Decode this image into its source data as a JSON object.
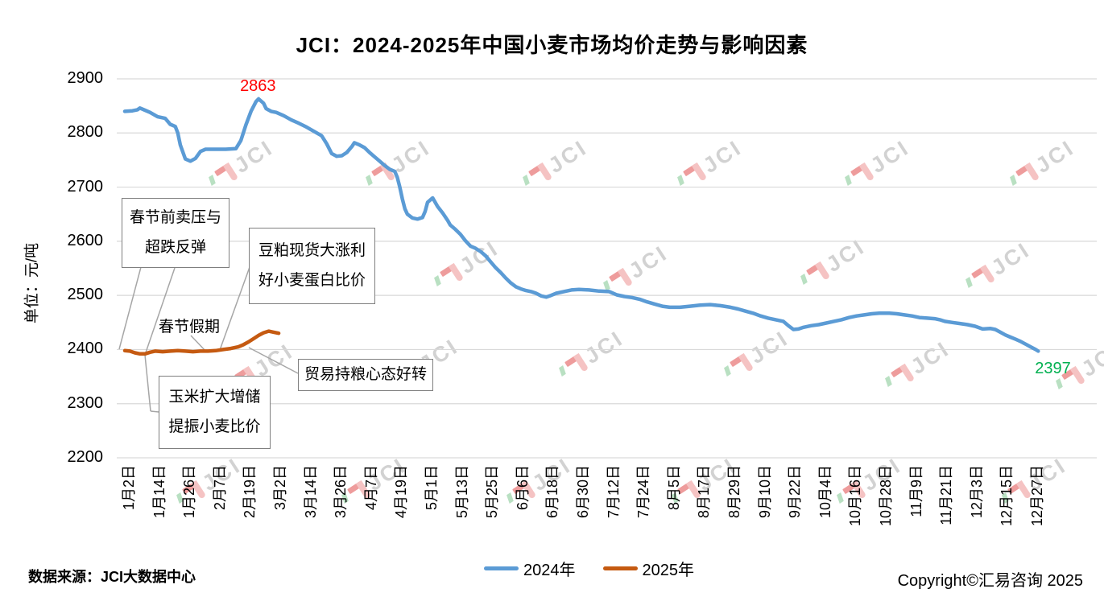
{
  "title": "JCI：2024-2025年中国小麦市场均价走势与影响因素",
  "y_axis": {
    "unit_label": "单位：元/吨",
    "ticks": [
      2900,
      2800,
      2700,
      2600,
      2500,
      2400,
      2300,
      2200
    ]
  },
  "x_axis": {
    "ticks": [
      "1月2日",
      "1月14日",
      "1月26日",
      "2月7日",
      "2月19日",
      "3月2日",
      "3月14日",
      "3月26日",
      "4月7日",
      "4月19日",
      "5月1日",
      "5月13日",
      "5月25日",
      "6月6日",
      "6月18日",
      "6月30日",
      "7月12日",
      "7月24日",
      "8月5日",
      "8月17日",
      "8月29日",
      "9月10日",
      "9月22日",
      "10月4日",
      "10月16日",
      "10月28日",
      "11月9日",
      "11月21日",
      "12月3日",
      "12月15日",
      "12月27日"
    ],
    "tick_interval_days": 12
  },
  "chart_data": {
    "type": "line",
    "title": "JCI：2024-2025年中国小麦市场均价走势与影响因素",
    "ylabel": "单位：元/吨",
    "ylim": [
      2200,
      2900
    ],
    "grid": "horizontal",
    "legend_position": "bottom",
    "x_unit": "days offset from 1月2日",
    "series": [
      {
        "name": "2024年",
        "color": "#5B9BD5",
        "points": [
          [
            0,
            2840
          ],
          [
            3,
            2841
          ],
          [
            5,
            2843
          ],
          [
            6,
            2846
          ],
          [
            8,
            2842
          ],
          [
            10,
            2838
          ],
          [
            13,
            2830
          ],
          [
            16,
            2827
          ],
          [
            18,
            2816
          ],
          [
            20,
            2812
          ],
          [
            21,
            2800
          ],
          [
            22,
            2778
          ],
          [
            24,
            2752
          ],
          [
            26,
            2748
          ],
          [
            28,
            2753
          ],
          [
            30,
            2766
          ],
          [
            32,
            2770
          ],
          [
            36,
            2770
          ],
          [
            40,
            2770
          ],
          [
            44,
            2771
          ],
          [
            46,
            2786
          ],
          [
            48,
            2815
          ],
          [
            50,
            2840
          ],
          [
            52,
            2858
          ],
          [
            53,
            2863
          ],
          [
            55,
            2855
          ],
          [
            56,
            2845
          ],
          [
            58,
            2840
          ],
          [
            60,
            2838
          ],
          [
            63,
            2832
          ],
          [
            66,
            2824
          ],
          [
            69,
            2818
          ],
          [
            72,
            2811
          ],
          [
            75,
            2803
          ],
          [
            78,
            2795
          ],
          [
            80,
            2780
          ],
          [
            82,
            2762
          ],
          [
            84,
            2757
          ],
          [
            86,
            2758
          ],
          [
            88,
            2764
          ],
          [
            90,
            2775
          ],
          [
            91,
            2782
          ],
          [
            93,
            2778
          ],
          [
            95,
            2773
          ],
          [
            97,
            2764
          ],
          [
            99,
            2756
          ],
          [
            101,
            2748
          ],
          [
            103,
            2740
          ],
          [
            105,
            2733
          ],
          [
            107,
            2729
          ],
          [
            108,
            2718
          ],
          [
            109,
            2700
          ],
          [
            110,
            2678
          ],
          [
            111,
            2660
          ],
          [
            112,
            2650
          ],
          [
            114,
            2643
          ],
          [
            116,
            2641
          ],
          [
            118,
            2644
          ],
          [
            119,
            2655
          ],
          [
            120,
            2672
          ],
          [
            122,
            2680
          ],
          [
            123,
            2672
          ],
          [
            124,
            2664
          ],
          [
            126,
            2652
          ],
          [
            128,
            2638
          ],
          [
            129,
            2630
          ],
          [
            131,
            2622
          ],
          [
            133,
            2613
          ],
          [
            135,
            2601
          ],
          [
            137,
            2591
          ],
          [
            139,
            2587
          ],
          [
            141,
            2581
          ],
          [
            143,
            2573
          ],
          [
            145,
            2562
          ],
          [
            147,
            2551
          ],
          [
            149,
            2542
          ],
          [
            151,
            2532
          ],
          [
            153,
            2523
          ],
          [
            155,
            2516
          ],
          [
            157,
            2512
          ],
          [
            159,
            2509
          ],
          [
            161,
            2507
          ],
          [
            163,
            2504
          ],
          [
            165,
            2499
          ],
          [
            167,
            2497
          ],
          [
            169,
            2500
          ],
          [
            171,
            2504
          ],
          [
            174,
            2507
          ],
          [
            177,
            2510
          ],
          [
            180,
            2511
          ],
          [
            184,
            2510
          ],
          [
            188,
            2508
          ],
          [
            192,
            2507
          ],
          [
            195,
            2501
          ],
          [
            198,
            2498
          ],
          [
            201,
            2496
          ],
          [
            204,
            2493
          ],
          [
            207,
            2488
          ],
          [
            210,
            2484
          ],
          [
            213,
            2480
          ],
          [
            216,
            2478
          ],
          [
            220,
            2478
          ],
          [
            224,
            2480
          ],
          [
            228,
            2482
          ],
          [
            232,
            2483
          ],
          [
            236,
            2481
          ],
          [
            240,
            2478
          ],
          [
            243,
            2475
          ],
          [
            246,
            2471
          ],
          [
            249,
            2467
          ],
          [
            252,
            2462
          ],
          [
            255,
            2458
          ],
          [
            258,
            2455
          ],
          [
            261,
            2452
          ],
          [
            263,
            2444
          ],
          [
            265,
            2437
          ],
          [
            267,
            2438
          ],
          [
            269,
            2441
          ],
          [
            272,
            2444
          ],
          [
            275,
            2446
          ],
          [
            278,
            2449
          ],
          [
            281,
            2452
          ],
          [
            284,
            2455
          ],
          [
            287,
            2459
          ],
          [
            290,
            2462
          ],
          [
            293,
            2464
          ],
          [
            296,
            2466
          ],
          [
            299,
            2467
          ],
          [
            303,
            2467
          ],
          [
            306,
            2466
          ],
          [
            309,
            2464
          ],
          [
            312,
            2462
          ],
          [
            315,
            2459
          ],
          [
            318,
            2458
          ],
          [
            321,
            2457
          ],
          [
            323,
            2455
          ],
          [
            325,
            2452
          ],
          [
            328,
            2450
          ],
          [
            331,
            2448
          ],
          [
            334,
            2446
          ],
          [
            337,
            2443
          ],
          [
            340,
            2438
          ],
          [
            343,
            2439
          ],
          [
            345,
            2437
          ],
          [
            347,
            2432
          ],
          [
            349,
            2427
          ],
          [
            351,
            2423
          ],
          [
            353,
            2419
          ],
          [
            355,
            2415
          ],
          [
            357,
            2410
          ],
          [
            359,
            2405
          ],
          [
            361,
            2400
          ],
          [
            362,
            2397
          ]
        ]
      },
      {
        "name": "2025年",
        "color": "#C55A11",
        "points": [
          [
            0,
            2398
          ],
          [
            2,
            2397
          ],
          [
            4,
            2394
          ],
          [
            6,
            2392
          ],
          [
            8,
            2392
          ],
          [
            10,
            2395
          ],
          [
            12,
            2397
          ],
          [
            15,
            2396
          ],
          [
            18,
            2397
          ],
          [
            21,
            2398
          ],
          [
            24,
            2397
          ],
          [
            27,
            2396
          ],
          [
            30,
            2397
          ],
          [
            33,
            2397
          ],
          [
            36,
            2398
          ],
          [
            39,
            2400
          ],
          [
            42,
            2402
          ],
          [
            45,
            2405
          ],
          [
            47,
            2409
          ],
          [
            49,
            2414
          ],
          [
            51,
            2420
          ],
          [
            53,
            2426
          ],
          [
            55,
            2431
          ],
          [
            57,
            2434
          ],
          [
            59,
            2432
          ],
          [
            61,
            2430
          ]
        ]
      }
    ],
    "point_labels": [
      {
        "text": "2863",
        "value": 2863,
        "series": "2024年",
        "color": "#FF0000",
        "position": "peak"
      },
      {
        "text": "2397",
        "value": 2397,
        "series": "2024年",
        "color": "#00B050",
        "position": "end"
      }
    ],
    "annotations": [
      "春节前卖压与超跌反弹",
      "豆粕现货大涨利好小麦蛋白比价",
      "春节假期",
      "玉米扩大增储提振小麦比价",
      "贸易持粮心态好转"
    ]
  },
  "annotations": {
    "pre_festival": {
      "line1": "春节前卖压与",
      "line2": "超跌反弹"
    },
    "soybean_meal": {
      "line1": "豆粕现货大涨利",
      "line2": "好小麦蛋白比价"
    },
    "festival_holiday": "春节假期",
    "corn_reserve": {
      "line1": "玉米扩大增储",
      "line2": "提振小麦比价"
    },
    "trade_sentiment": "贸易持粮心态好转"
  },
  "labels": {
    "peak": "2863",
    "end": "2397"
  },
  "legend": [
    {
      "label": "2024年",
      "color": "#5B9BD5"
    },
    {
      "label": "2025年",
      "color": "#C55A11"
    }
  ],
  "watermark_text": "JCI",
  "colors": {
    "gridline": "#D9D9D9",
    "leader_line": "#A6A6A6",
    "annotation_border": "#7F7F7F",
    "peak_label": "#FF0000",
    "end_label": "#00B050"
  },
  "footer": {
    "source": "数据来源：JCI大数据中心",
    "copyright": "Copyright©汇易咨询 2025"
  }
}
